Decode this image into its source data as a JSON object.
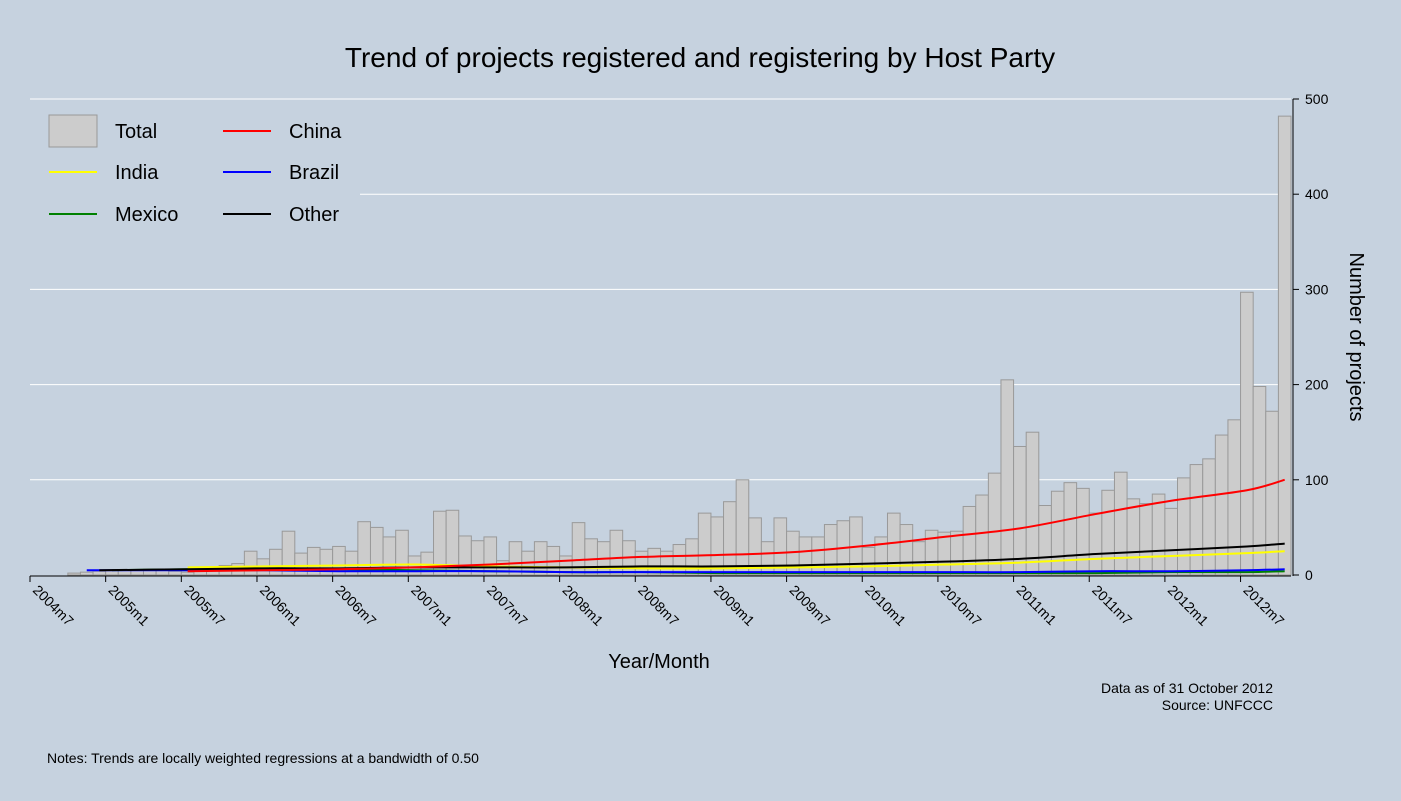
{
  "chart_data": {
    "type": "bar",
    "title": "Trend of projects registered and registering by Host Party",
    "xlabel": "Year/Month",
    "ylabel": "Number of projects",
    "ylim": [
      0,
      500
    ],
    "yticks": [
      0,
      100,
      200,
      300,
      400,
      500
    ],
    "grid": true,
    "legend_position": "top-left",
    "x_tick_labels": [
      "2004m7",
      "2005m1",
      "2005m7",
      "2006m1",
      "2006m7",
      "2007m1",
      "2007m7",
      "2008m1",
      "2008m7",
      "2009m1",
      "2009m7",
      "2010m1",
      "2010m7",
      "2011m1",
      "2011m7",
      "2012m1",
      "2012m7"
    ],
    "months": [
      "2004m7",
      "2004m8",
      "2004m9",
      "2004m10",
      "2004m11",
      "2004m12",
      "2005m1",
      "2005m2",
      "2005m3",
      "2005m4",
      "2005m5",
      "2005m6",
      "2005m7",
      "2005m8",
      "2005m9",
      "2005m10",
      "2005m11",
      "2005m12",
      "2006m1",
      "2006m2",
      "2006m3",
      "2006m4",
      "2006m5",
      "2006m6",
      "2006m7",
      "2006m8",
      "2006m9",
      "2006m10",
      "2006m11",
      "2006m12",
      "2007m1",
      "2007m2",
      "2007m3",
      "2007m4",
      "2007m5",
      "2007m6",
      "2007m7",
      "2007m8",
      "2007m9",
      "2007m10",
      "2007m11",
      "2007m12",
      "2008m1",
      "2008m2",
      "2008m3",
      "2008m4",
      "2008m5",
      "2008m6",
      "2008m7",
      "2008m8",
      "2008m9",
      "2008m10",
      "2008m11",
      "2008m12",
      "2009m1",
      "2009m2",
      "2009m3",
      "2009m4",
      "2009m5",
      "2009m6",
      "2009m7",
      "2009m8",
      "2009m9",
      "2009m10",
      "2009m11",
      "2009m12",
      "2010m1",
      "2010m2",
      "2010m3",
      "2010m4",
      "2010m5",
      "2010m6",
      "2010m7",
      "2010m8",
      "2010m9",
      "2010m10",
      "2010m11",
      "2010m12",
      "2011m1",
      "2011m2",
      "2011m3",
      "2011m4",
      "2011m5",
      "2011m6",
      "2011m7",
      "2011m8",
      "2011m9",
      "2011m10",
      "2011m11",
      "2011m12",
      "2012m1",
      "2012m2",
      "2012m3",
      "2012m4",
      "2012m5",
      "2012m6",
      "2012m7",
      "2012m8",
      "2012m9",
      "2012m10"
    ],
    "total": [
      0,
      0,
      0,
      2,
      3,
      4,
      5,
      5,
      5,
      6,
      5,
      4,
      3,
      5,
      8,
      10,
      12,
      25,
      17,
      27,
      46,
      23,
      29,
      27,
      30,
      25,
      56,
      50,
      40,
      47,
      20,
      24,
      67,
      68,
      41,
      36,
      40,
      15,
      35,
      25,
      35,
      30,
      20,
      55,
      38,
      35,
      47,
      36,
      25,
      28,
      25,
      32,
      38,
      65,
      61,
      77,
      100,
      60,
      35,
      60,
      46,
      40,
      40,
      53,
      57,
      61,
      29,
      40,
      65,
      53,
      35,
      47,
      45,
      46,
      72,
      84,
      107,
      205,
      135,
      150,
      73,
      88,
      97,
      91,
      65,
      89,
      108,
      80,
      75,
      85,
      70,
      102,
      116,
      122,
      147,
      163,
      297,
      198,
      172,
      482
    ],
    "series": [
      {
        "name": "China",
        "color": "#ff0000",
        "values": [
          {
            "x": "2005m7",
            "y": 4
          },
          {
            "x": "2006m1",
            "y": 5
          },
          {
            "x": "2006m7",
            "y": 6
          },
          {
            "x": "2007m1",
            "y": 8
          },
          {
            "x": "2007m7",
            "y": 11
          },
          {
            "x": "2008m1",
            "y": 15
          },
          {
            "x": "2008m7",
            "y": 19
          },
          {
            "x": "2009m1",
            "y": 21
          },
          {
            "x": "2009m7",
            "y": 24
          },
          {
            "x": "2010m1",
            "y": 31
          },
          {
            "x": "2010m7",
            "y": 40
          },
          {
            "x": "2011m1",
            "y": 49
          },
          {
            "x": "2011m7",
            "y": 64
          },
          {
            "x": "2012m1",
            "y": 78
          },
          {
            "x": "2012m7",
            "y": 89
          },
          {
            "x": "2012m10",
            "y": 100
          }
        ]
      },
      {
        "name": "India",
        "color": "#ffff00",
        "values": [
          {
            "x": "2005m7",
            "y": 8
          },
          {
            "x": "2006m1",
            "y": 9
          },
          {
            "x": "2006m7",
            "y": 10
          },
          {
            "x": "2007m1",
            "y": 11
          },
          {
            "x": "2007m7",
            "y": 9
          },
          {
            "x": "2008m1",
            "y": 8
          },
          {
            "x": "2008m7",
            "y": 7
          },
          {
            "x": "2009m1",
            "y": 7
          },
          {
            "x": "2009m7",
            "y": 8
          },
          {
            "x": "2010m1",
            "y": 9
          },
          {
            "x": "2010m7",
            "y": 11
          },
          {
            "x": "2011m1",
            "y": 13
          },
          {
            "x": "2011m7",
            "y": 17
          },
          {
            "x": "2012m1",
            "y": 20
          },
          {
            "x": "2012m7",
            "y": 23
          },
          {
            "x": "2012m10",
            "y": 25
          }
        ]
      },
      {
        "name": "Brazil",
        "color": "#0000ff",
        "values": [
          {
            "x": "2004m11",
            "y": 5
          },
          {
            "x": "2005m7",
            "y": 5
          },
          {
            "x": "2006m1",
            "y": 5
          },
          {
            "x": "2006m7",
            "y": 4
          },
          {
            "x": "2007m1",
            "y": 4
          },
          {
            "x": "2007m7",
            "y": 4
          },
          {
            "x": "2008m1",
            "y": 3
          },
          {
            "x": "2008m7",
            "y": 3
          },
          {
            "x": "2009m1",
            "y": 3
          },
          {
            "x": "2009m7",
            "y": 3
          },
          {
            "x": "2010m1",
            "y": 3
          },
          {
            "x": "2010m7",
            "y": 3
          },
          {
            "x": "2011m1",
            "y": 3
          },
          {
            "x": "2011m7",
            "y": 4
          },
          {
            "x": "2012m1",
            "y": 4
          },
          {
            "x": "2012m7",
            "y": 5
          },
          {
            "x": "2012m10",
            "y": 6
          }
        ]
      },
      {
        "name": "Mexico",
        "color": "#008000",
        "values": [
          {
            "x": "2005m1",
            "y": 5
          },
          {
            "x": "2005m7",
            "y": 6
          },
          {
            "x": "2006m1",
            "y": 6
          },
          {
            "x": "2006m7",
            "y": 6
          },
          {
            "x": "2007m1",
            "y": 5
          },
          {
            "x": "2007m7",
            "y": 4
          },
          {
            "x": "2008m1",
            "y": 3
          },
          {
            "x": "2008m7",
            "y": 3
          },
          {
            "x": "2009m1",
            "y": 2
          },
          {
            "x": "2009m7",
            "y": 2
          },
          {
            "x": "2010m1",
            "y": 2
          },
          {
            "x": "2010m7",
            "y": 2
          },
          {
            "x": "2011m1",
            "y": 2
          },
          {
            "x": "2011m7",
            "y": 2
          },
          {
            "x": "2012m1",
            "y": 3
          },
          {
            "x": "2012m7",
            "y": 3
          },
          {
            "x": "2012m10",
            "y": 4
          }
        ]
      },
      {
        "name": "Other",
        "color": "#000000",
        "values": [
          {
            "x": "2004m12",
            "y": 5
          },
          {
            "x": "2005m7",
            "y": 6
          },
          {
            "x": "2006m1",
            "y": 7
          },
          {
            "x": "2006m7",
            "y": 7
          },
          {
            "x": "2007m1",
            "y": 8
          },
          {
            "x": "2007m7",
            "y": 8
          },
          {
            "x": "2008m1",
            "y": 8
          },
          {
            "x": "2008m7",
            "y": 9
          },
          {
            "x": "2009m1",
            "y": 9
          },
          {
            "x": "2009m7",
            "y": 10
          },
          {
            "x": "2010m1",
            "y": 12
          },
          {
            "x": "2010m7",
            "y": 14
          },
          {
            "x": "2011m1",
            "y": 17
          },
          {
            "x": "2011m7",
            "y": 22
          },
          {
            "x": "2012m1",
            "y": 26
          },
          {
            "x": "2012m7",
            "y": 30
          },
          {
            "x": "2012m10",
            "y": 33
          }
        ]
      }
    ],
    "legend": [
      {
        "name": "Total",
        "kind": "bar"
      },
      {
        "name": "China",
        "kind": "line",
        "color": "#ff0000"
      },
      {
        "name": "India",
        "kind": "line",
        "color": "#ffff00"
      },
      {
        "name": "Brazil",
        "kind": "line",
        "color": "#0000ff"
      },
      {
        "name": "Mexico",
        "kind": "line",
        "color": "#008000"
      },
      {
        "name": "Other",
        "kind": "line",
        "color": "#000000"
      }
    ],
    "bar_fill": "#cccccc",
    "bar_stroke": "#999999"
  },
  "source_lines": [
    "Data as of 31 October 2012",
    "Source: UNFCCC"
  ],
  "notes": "Notes: Trends are locally weighted regressions at a bandwidth of 0.50"
}
